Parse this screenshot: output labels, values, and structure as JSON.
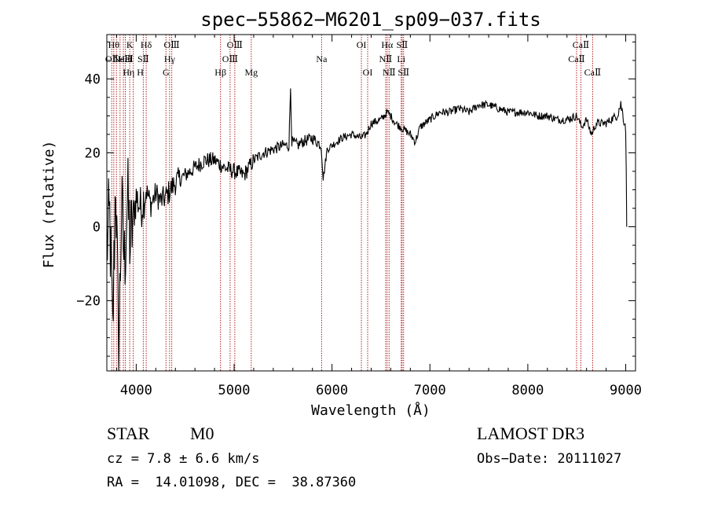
{
  "chart_data": {
    "type": "line",
    "title": "spec−55862−M6201_sp09−037.fits",
    "xlabel": "Wavelength (Å)",
    "ylabel": "Flux (relative)",
    "xlim": [
      3700,
      9100
    ],
    "ylim": [
      -39,
      52
    ],
    "x_ticks": [
      4000,
      5000,
      6000,
      7000,
      8000,
      9000
    ],
    "x_tick_labels": [
      "4000",
      "5000",
      "6000",
      "7000",
      "8000",
      "9000"
    ],
    "y_ticks": [
      -20,
      0,
      20,
      40
    ],
    "y_tick_labels": [
      "−20",
      "0",
      "20",
      "40"
    ],
    "grid": false,
    "line_color": "#000000",
    "marker_color": "#b22222",
    "series": [
      {
        "name": "flux",
        "x": [
          3700,
          3730,
          3760,
          3790,
          3820,
          3850,
          3880,
          3910,
          3940,
          3970,
          4000,
          4050,
          4100,
          4150,
          4200,
          4250,
          4300,
          4350,
          4400,
          4500,
          4600,
          4700,
          4800,
          4900,
          5000,
          5100,
          5200,
          5300,
          5400,
          5500,
          5560,
          5577,
          5590,
          5650,
          5700,
          5800,
          5890,
          5910,
          5950,
          6000,
          6100,
          6200,
          6300,
          6350,
          6400,
          6500,
          6563,
          6600,
          6650,
          6700,
          6800,
          6850,
          6900,
          7000,
          7100,
          7200,
          7300,
          7400,
          7500,
          7600,
          7700,
          7800,
          7900,
          8000,
          8100,
          8200,
          8300,
          8400,
          8500,
          8550,
          8600,
          8650,
          8700,
          8800,
          8900,
          8950,
          9000,
          9010
        ],
        "y": [
          -5,
          2,
          -30,
          15,
          -35,
          5,
          -10,
          8,
          -5,
          3,
          8,
          5,
          10,
          6,
          9,
          7,
          8,
          10,
          12,
          14,
          16,
          18,
          18,
          16,
          15,
          14,
          18,
          20,
          21,
          22,
          22,
          38,
          23,
          22,
          23,
          24,
          22,
          13,
          21,
          22,
          24,
          25,
          24,
          25,
          28,
          29,
          31,
          30,
          28,
          27,
          25,
          23,
          27,
          29,
          31,
          31,
          32,
          31,
          33,
          33,
          32,
          31,
          31,
          31,
          30,
          30,
          29,
          29,
          30,
          27,
          29,
          25,
          28,
          28,
          30,
          33,
          27,
          0
        ]
      }
    ],
    "line_markers": [
      {
        "wave": 3750,
        "label": "OⅡ",
        "row": 1
      },
      {
        "wave": 3771,
        "label": "Hθ",
        "row": 0
      },
      {
        "wave": 3798,
        "label": "",
        "row": 0
      },
      {
        "wave": 3835,
        "label": "",
        "row": 0
      },
      {
        "wave": 3869,
        "label": "NeⅢ",
        "row": 1
      },
      {
        "wave": 3889,
        "label": "HeΙ",
        "row": 1
      },
      {
        "wave": 3934,
        "label": "K",
        "row": 0
      },
      {
        "wave": 3970,
        "label": "Hη H",
        "row": 2
      },
      {
        "wave": 4072,
        "label": "SⅡ",
        "row": 1
      },
      {
        "wave": 4102,
        "label": "Hδ",
        "row": 0
      },
      {
        "wave": 4304,
        "label": "G",
        "row": 2
      },
      {
        "wave": 4341,
        "label": "Hγ",
        "row": 1
      },
      {
        "wave": 4363,
        "label": "OⅢ",
        "row": 0
      },
      {
        "wave": 4861,
        "label": "Hβ",
        "row": 2
      },
      {
        "wave": 4959,
        "label": "OⅢ",
        "row": 1
      },
      {
        "wave": 5007,
        "label": "OⅢ",
        "row": 0
      },
      {
        "wave": 5175,
        "label": "Mg",
        "row": 2
      },
      {
        "wave": 5894,
        "label": "Na",
        "row": 1
      },
      {
        "wave": 6300,
        "label": "OΙ",
        "row": 0
      },
      {
        "wave": 6364,
        "label": "OΙ",
        "row": 2
      },
      {
        "wave": 6548,
        "label": "NⅡ",
        "row": 1
      },
      {
        "wave": 6563,
        "label": "Hα",
        "row": 0
      },
      {
        "wave": 6583,
        "label": "NⅡ",
        "row": 2
      },
      {
        "wave": 6707,
        "label": "Li",
        "row": 1
      },
      {
        "wave": 6716,
        "label": "SⅡ",
        "row": 0
      },
      {
        "wave": 6731,
        "label": "SⅡ",
        "row": 2
      },
      {
        "wave": 8498,
        "label": "CaⅡ",
        "row": 1
      },
      {
        "wave": 8542,
        "label": "CaⅡ",
        "row": 0
      },
      {
        "wave": 8662,
        "label": "CaⅡ",
        "row": 2
      }
    ]
  },
  "info": {
    "class_label": "STAR",
    "subclass_label": "M0",
    "survey": "LAMOST DR3",
    "cz": "cz = 7.8 ± 6.6 km/s",
    "obs_date": "Obs−Date: 20111027",
    "coords": "RA =  14.01098, DEC =  38.87360"
  }
}
